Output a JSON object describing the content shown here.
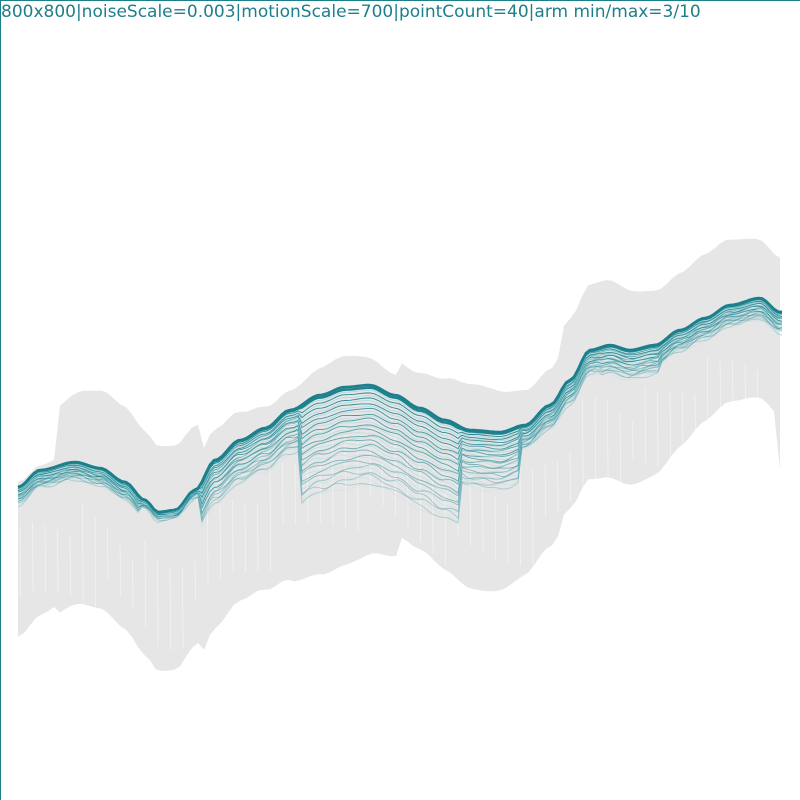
{
  "info_text": "800x800|noiseScale=0.003|motionScale=700|pointCount=40|arm min/max=3/10",
  "colors": {
    "accent": "#1c7f8c",
    "accent_light": "#a9dbe0",
    "shadow": "#e6e6e6",
    "background": "#ffffff"
  }
}
